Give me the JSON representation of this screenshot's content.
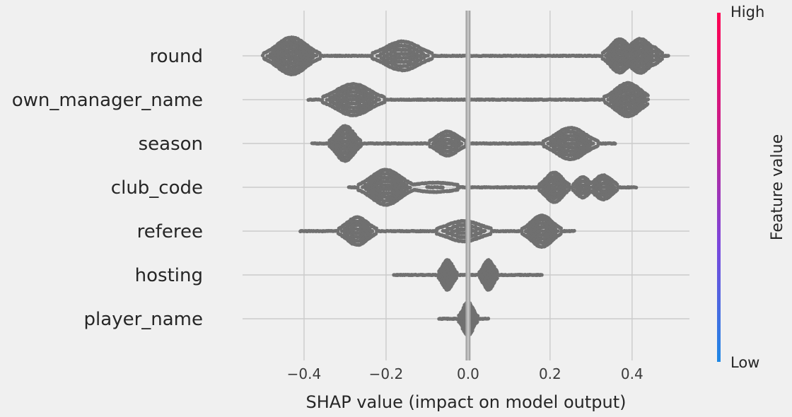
{
  "chart_data": {
    "type": "scatter",
    "subtype": "shap-beeswarm-summary",
    "xlabel": "SHAP value (impact on model output)",
    "xlim": [
      -0.55,
      0.54
    ],
    "xticks": [
      -0.4,
      -0.2,
      0.0,
      0.2,
      0.4
    ],
    "xtick_labels": [
      "−0.4",
      "−0.2",
      "0.0",
      "0.2",
      "0.4"
    ],
    "grid": true,
    "point_color": "#707070",
    "zero_line_color": "#a8a8a8",
    "colorbar": {
      "title": "Feature value",
      "high_label": "High",
      "low_label": "Low",
      "colors": [
        "#1e88e5",
        "#7a48dd",
        "#c81e8c",
        "#ff0052"
      ]
    },
    "series": [
      {
        "name": "round",
        "min": -0.5,
        "max": 0.49,
        "clusters": [
          {
            "x": -0.43,
            "w": 0.035,
            "h": 1.0
          },
          {
            "x": -0.16,
            "w": 0.04,
            "h": 0.78
          },
          {
            "x": 0.37,
            "w": 0.022,
            "h": 0.9
          },
          {
            "x": 0.42,
            "w": 0.025,
            "h": 0.92
          },
          {
            "x": 0.45,
            "w": 0.015,
            "h": 0.5
          }
        ]
      },
      {
        "name": "own_manager_name",
        "min": -0.39,
        "max": 0.44,
        "clusters": [
          {
            "x": -0.28,
            "w": 0.04,
            "h": 0.85
          },
          {
            "x": 0.39,
            "w": 0.03,
            "h": 0.9
          }
        ]
      },
      {
        "name": "season",
        "min": -0.38,
        "max": 0.36,
        "clusters": [
          {
            "x": -0.3,
            "w": 0.02,
            "h": 0.95
          },
          {
            "x": -0.05,
            "w": 0.025,
            "h": 0.65
          },
          {
            "x": 0.25,
            "w": 0.035,
            "h": 0.85
          }
        ]
      },
      {
        "name": "club_code",
        "min": -0.29,
        "max": 0.41,
        "clusters": [
          {
            "x": -0.2,
            "w": 0.035,
            "h": 0.95
          },
          {
            "x": -0.08,
            "w": 0.05,
            "h": 0.25
          },
          {
            "x": 0.21,
            "w": 0.02,
            "h": 0.8
          },
          {
            "x": 0.28,
            "w": 0.015,
            "h": 0.55
          },
          {
            "x": 0.33,
            "w": 0.02,
            "h": 0.65
          }
        ]
      },
      {
        "name": "referee",
        "min": -0.41,
        "max": 0.26,
        "clusters": [
          {
            "x": -0.27,
            "w": 0.025,
            "h": 0.75
          },
          {
            "x": -0.01,
            "w": 0.04,
            "h": 0.55
          },
          {
            "x": 0.18,
            "w": 0.025,
            "h": 0.85
          }
        ]
      },
      {
        "name": "hosting",
        "min": -0.18,
        "max": 0.18,
        "clusters": [
          {
            "x": -0.05,
            "w": 0.012,
            "h": 0.8
          },
          {
            "x": 0.05,
            "w": 0.012,
            "h": 0.8
          }
        ]
      },
      {
        "name": "player_name",
        "min": -0.07,
        "max": 0.05,
        "clusters": [
          {
            "x": 0.0,
            "w": 0.012,
            "h": 0.9
          }
        ]
      }
    ]
  }
}
